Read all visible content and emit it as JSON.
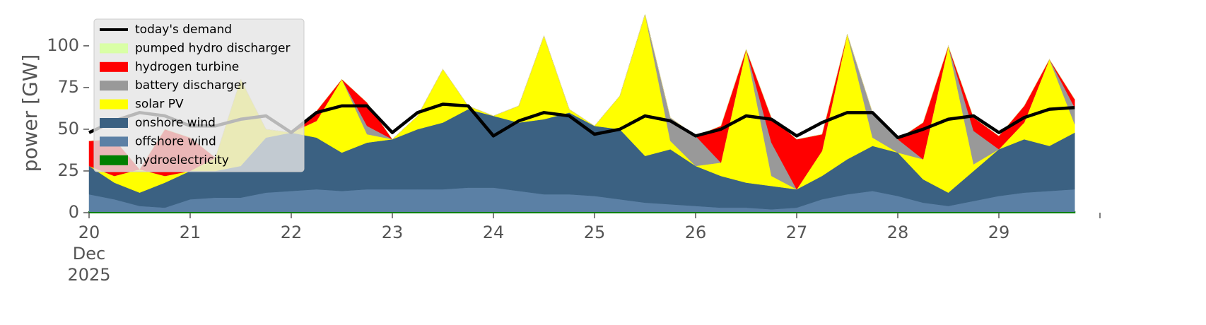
{
  "chart_data": {
    "type": "stacked-area",
    "ylabel": "power [GW]",
    "x": [
      20,
      20.25,
      20.5,
      20.75,
      21,
      21.25,
      21.5,
      21.75,
      22,
      22.25,
      22.5,
      22.75,
      23,
      23.25,
      23.5,
      23.75,
      24,
      24.25,
      24.5,
      24.75,
      25,
      25.25,
      25.5,
      25.75,
      26,
      26.25,
      26.5,
      26.75,
      27,
      27.25,
      27.5,
      27.75,
      28,
      28.25,
      28.5,
      28.75,
      29,
      29.25,
      29.5,
      29.75
    ],
    "xlim": [
      20,
      30
    ],
    "xticks": [
      {
        "value": 20,
        "label": "20\nDec\n2025"
      },
      21,
      22,
      23,
      24,
      25,
      26,
      27,
      28,
      29
    ],
    "ylim": [
      0,
      119
    ],
    "yticks": [
      0,
      25,
      50,
      75,
      100
    ],
    "legend": "upper left",
    "series": [
      {
        "name": "hydroelectricity",
        "color": "#008000",
        "values": [
          0.5,
          0.5,
          0.5,
          0.5,
          0.5,
          0.5,
          0.5,
          0.5,
          0.5,
          0.5,
          0.5,
          0.5,
          0.5,
          0.5,
          0.5,
          0.5,
          0.5,
          0.5,
          0.5,
          0.5,
          0.5,
          0.5,
          0.5,
          0.5,
          0.5,
          0.5,
          0.5,
          0.5,
          0.5,
          0.5,
          0.5,
          0.5,
          0.5,
          0.5,
          0.5,
          0.5,
          0.5,
          0.5,
          0.5,
          0.5
        ]
      },
      {
        "name": "offshore wind",
        "color": "#5b80a5",
        "values": [
          10.5,
          7.5,
          3.5,
          2.5,
          7.5,
          8.5,
          8.5,
          11.5,
          12.5,
          13.5,
          12.5,
          13.5,
          13.5,
          13.5,
          13.5,
          14.5,
          14.5,
          12.5,
          10.5,
          10.5,
          9.5,
          7.5,
          5.5,
          4.5,
          3.5,
          2.5,
          2.5,
          1.5,
          2.5,
          7.5,
          10.5,
          12.5,
          9.5,
          5.5,
          3.5,
          6.5,
          9.5,
          11.5,
          12.5,
          13.5
        ]
      },
      {
        "name": "onshore wind",
        "color": "#3b6182",
        "values": [
          17,
          10,
          8,
          15,
          17,
          16,
          19,
          33,
          35,
          31,
          23,
          28,
          30,
          36,
          40,
          47,
          43,
          41,
          45,
          49,
          42,
          42,
          28,
          33,
          24,
          19,
          15,
          14,
          11,
          14,
          21,
          27,
          26,
          14,
          8,
          18,
          28,
          32,
          27,
          34
        ]
      },
      {
        "name": "solar PV",
        "color": "#ffff00",
        "values": [
          0,
          4,
          14,
          4,
          0,
          8,
          52,
          5,
          0,
          10,
          44,
          5,
          0,
          8,
          32,
          2,
          0,
          10,
          50,
          2,
          0,
          20,
          85,
          5,
          0,
          8,
          80,
          6,
          0,
          15,
          75,
          5,
          0,
          12,
          88,
          4,
          0,
          10,
          52,
          5
        ]
      },
      {
        "name": "battery discharger",
        "color": "#999999",
        "values": [
          0,
          0,
          0,
          0,
          0,
          0,
          0,
          0,
          0,
          0,
          0,
          5,
          0,
          0,
          0,
          0,
          0,
          0,
          0,
          0,
          0,
          0,
          0,
          14,
          18,
          0,
          0,
          20,
          0,
          0,
          0,
          15,
          8,
          0,
          0,
          20,
          0,
          0,
          0,
          10
        ]
      },
      {
        "name": "hydrogen turbine",
        "color": "#ff0000",
        "values": [
          15,
          22,
          0,
          28,
          20,
          0,
          0,
          0,
          0,
          6,
          0,
          14,
          0,
          0,
          0,
          0,
          0,
          0,
          0,
          0,
          0,
          0,
          0,
          0,
          0,
          22,
          0,
          15,
          30,
          10,
          0,
          0,
          0,
          22,
          0,
          8,
          8,
          10,
          0,
          5
        ]
      },
      {
        "name": "pumped hydro discharger",
        "color": "#d9ffa6",
        "values": [
          0,
          0,
          0,
          0,
          0,
          0,
          0,
          0,
          0,
          0,
          0,
          0,
          0,
          0,
          0,
          0,
          0,
          0,
          0,
          0,
          0,
          0,
          0,
          0,
          0,
          0,
          0,
          0,
          0,
          0,
          0,
          0,
          0,
          0,
          0,
          0,
          0,
          0,
          0,
          0
        ]
      }
    ],
    "line": {
      "name": "today's demand",
      "color": "#000000",
      "values": [
        48,
        55,
        60,
        58,
        52,
        52,
        56,
        58,
        48,
        60,
        64,
        64,
        48,
        60,
        65,
        64,
        46,
        55,
        60,
        58,
        47,
        50,
        58,
        55,
        46,
        50,
        58,
        56,
        46,
        54,
        60,
        60,
        45,
        50,
        56,
        58,
        48,
        57,
        62,
        63
      ]
    },
    "legend_order": [
      "line",
      6,
      5,
      4,
      3,
      2,
      1,
      0
    ]
  }
}
